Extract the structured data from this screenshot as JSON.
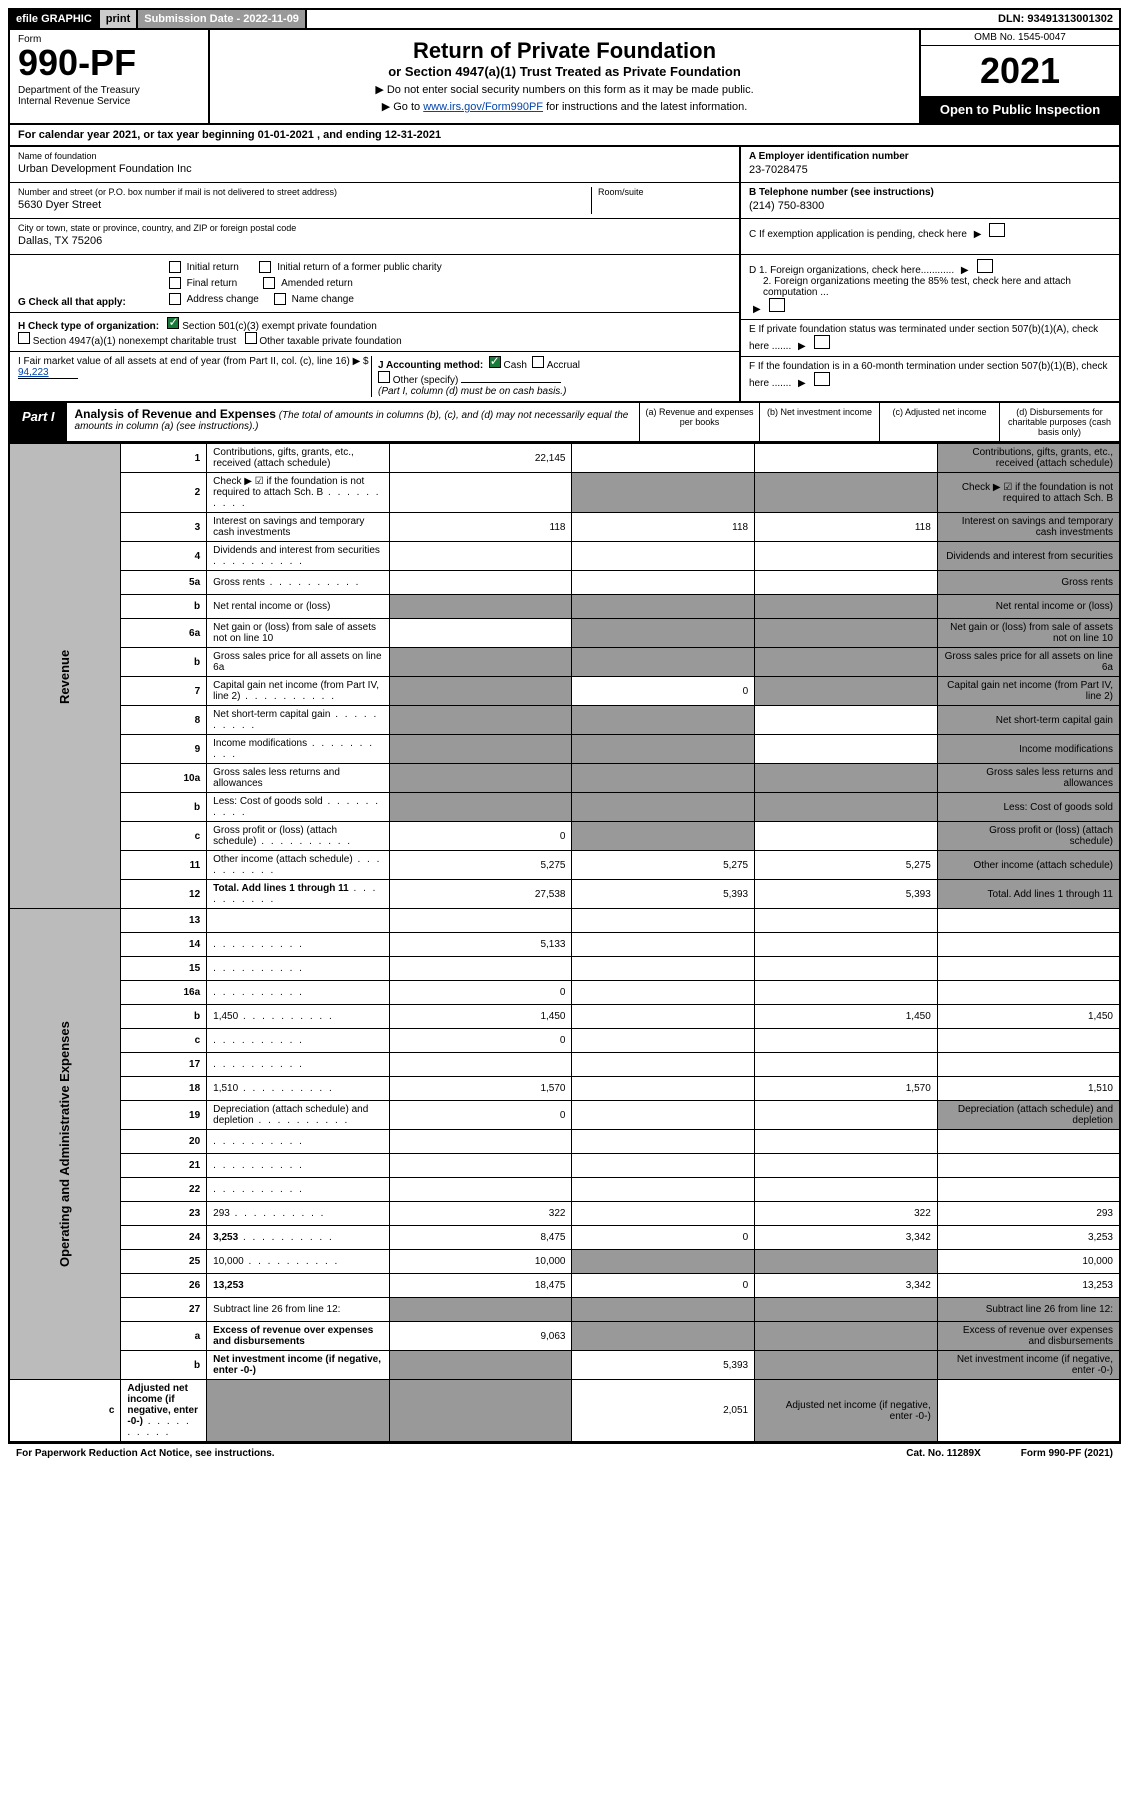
{
  "topbar": {
    "efile": "efile GRAPHIC",
    "print": "print",
    "subdate_label": "Submission Date - 2022-11-09",
    "dln": "DLN: 93491313001302"
  },
  "header": {
    "form_label": "Form",
    "form_num": "990-PF",
    "dept": "Department of the Treasury\nInternal Revenue Service",
    "title": "Return of Private Foundation",
    "subtitle": "or Section 4947(a)(1) Trust Treated as Private Foundation",
    "note1": "▶ Do not enter social security numbers on this form as it may be made public.",
    "note2_pre": "▶ Go to ",
    "note2_link": "www.irs.gov/Form990PF",
    "note2_post": " for instructions and the latest information.",
    "omb": "OMB No. 1545-0047",
    "year": "2021",
    "open": "Open to Public Inspection"
  },
  "calyear": "For calendar year 2021, or tax year beginning 01-01-2021          , and ending 12-31-2021",
  "info": {
    "name_label": "Name of foundation",
    "name": "Urban Development Foundation Inc",
    "addr_label": "Number and street (or P.O. box number if mail is not delivered to street address)",
    "room_label": "Room/suite",
    "addr": "5630 Dyer Street",
    "city_label": "City or town, state or province, country, and ZIP or foreign postal code",
    "city": "Dallas, TX  75206",
    "a_label": "A Employer identification number",
    "a_val": "23-7028475",
    "b_label": "B Telephone number (see instructions)",
    "b_val": "(214) 750-8300",
    "c_label": "C If exemption application is pending, check here",
    "d1_label": "D 1. Foreign organizations, check here............",
    "d2_label": "2. Foreign organizations meeting the 85% test, check here and attach computation ...",
    "e_label": "E If private foundation status was terminated under section 507(b)(1)(A), check here .......",
    "f_label": "F If the foundation is in a 60-month termination under section 507(b)(1)(B), check here .......",
    "g_label": "G Check all that apply:",
    "g_opts": [
      "Initial return",
      "Initial return of a former public charity",
      "Final return",
      "Amended return",
      "Address change",
      "Name change"
    ],
    "h_label": "H Check type of organization:",
    "h_opts": [
      "Section 501(c)(3) exempt private foundation",
      "Section 4947(a)(1) nonexempt charitable trust",
      "Other taxable private foundation"
    ],
    "i_label": "I Fair market value of all assets at end of year (from Part II, col. (c), line 16) ▶ $",
    "i_val": "94,223",
    "j_label": "J Accounting method:",
    "j_opts": [
      "Cash",
      "Accrual",
      "Other (specify)"
    ],
    "j_note": "(Part I, column (d) must be on cash basis.)"
  },
  "part1": {
    "label": "Part I",
    "title": "Analysis of Revenue and Expenses",
    "desc": "(The total of amounts in columns (b), (c), and (d) may not necessarily equal the amounts in column (a) (see instructions).)",
    "cols": [
      "(a) Revenue and expenses per books",
      "(b) Net investment income",
      "(c) Adjusted net income",
      "(d) Disbursements for charitable purposes (cash basis only)"
    ]
  },
  "sides": {
    "rev": "Revenue",
    "exp": "Operating and Administrative Expenses"
  },
  "rows": [
    {
      "n": "1",
      "d": "Contributions, gifts, grants, etc., received (attach schedule)",
      "a": "22,145",
      "b": "",
      "c": "",
      "d_grey": true
    },
    {
      "n": "2",
      "d": "Check ▶ ☑ if the foundation is not required to attach Sch. B",
      "dots": true,
      "a": "",
      "b_grey": true,
      "c_grey": true,
      "d_grey": true
    },
    {
      "n": "3",
      "d": "Interest on savings and temporary cash investments",
      "a": "118",
      "b": "118",
      "c": "118",
      "d_grey": true
    },
    {
      "n": "4",
      "d": "Dividends and interest from securities",
      "dots": true,
      "a": "",
      "b": "",
      "c": "",
      "d_grey": true
    },
    {
      "n": "5a",
      "d": "Gross rents",
      "dots": true,
      "a": "",
      "b": "",
      "c": "",
      "d_grey": true
    },
    {
      "n": "b",
      "d": "Net rental income or (loss)",
      "a_grey": true,
      "b_grey": true,
      "c_grey": true,
      "d_grey": true
    },
    {
      "n": "6a",
      "d": "Net gain or (loss) from sale of assets not on line 10",
      "a": "",
      "b_grey": true,
      "c_grey": true,
      "d_grey": true
    },
    {
      "n": "b",
      "d": "Gross sales price for all assets on line 6a",
      "a_grey": true,
      "b_grey": true,
      "c_grey": true,
      "d_grey": true
    },
    {
      "n": "7",
      "d": "Capital gain net income (from Part IV, line 2)",
      "dots": true,
      "a_grey": true,
      "b": "0",
      "c_grey": true,
      "d_grey": true
    },
    {
      "n": "8",
      "d": "Net short-term capital gain",
      "dots": true,
      "a_grey": true,
      "b_grey": true,
      "c": "",
      "d_grey": true
    },
    {
      "n": "9",
      "d": "Income modifications",
      "dots": true,
      "a_grey": true,
      "b_grey": true,
      "c": "",
      "d_grey": true
    },
    {
      "n": "10a",
      "d": "Gross sales less returns and allowances",
      "a_grey": true,
      "b_grey": true,
      "c_grey": true,
      "d_grey": true
    },
    {
      "n": "b",
      "d": "Less: Cost of goods sold",
      "dots": true,
      "a_grey": true,
      "b_grey": true,
      "c_grey": true,
      "d_grey": true
    },
    {
      "n": "c",
      "d": "Gross profit or (loss) (attach schedule)",
      "dots": true,
      "a": "0",
      "b_grey": true,
      "c": "",
      "d_grey": true
    },
    {
      "n": "11",
      "d": "Other income (attach schedule)",
      "dots": true,
      "a": "5,275",
      "b": "5,275",
      "c": "5,275",
      "d_grey": true
    },
    {
      "n": "12",
      "d": "Total. Add lines 1 through 11",
      "dots": true,
      "bold": true,
      "a": "27,538",
      "b": "5,393",
      "c": "5,393",
      "d_grey": true
    },
    {
      "n": "13",
      "d": "",
      "a": "",
      "b": "",
      "c": ""
    },
    {
      "n": "14",
      "d": "",
      "dots": true,
      "a": "5,133",
      "b": "",
      "c": ""
    },
    {
      "n": "15",
      "d": "",
      "dots": true,
      "a": "",
      "b": "",
      "c": ""
    },
    {
      "n": "16a",
      "d": "",
      "dots": true,
      "a": "0",
      "b": "",
      "c": ""
    },
    {
      "n": "b",
      "d": "1,450",
      "dots": true,
      "a": "1,450",
      "b": "",
      "c": "1,450"
    },
    {
      "n": "c",
      "d": "",
      "dots": true,
      "a": "0",
      "b": "",
      "c": ""
    },
    {
      "n": "17",
      "d": "",
      "dots": true,
      "a": "",
      "b": "",
      "c": ""
    },
    {
      "n": "18",
      "d": "1,510",
      "dots": true,
      "a": "1,570",
      "b": "",
      "c": "1,570"
    },
    {
      "n": "19",
      "d": "Depreciation (attach schedule) and depletion",
      "dots": true,
      "a": "0",
      "b": "",
      "c": "",
      "d_grey": true
    },
    {
      "n": "20",
      "d": "",
      "dots": true,
      "a": "",
      "b": "",
      "c": ""
    },
    {
      "n": "21",
      "d": "",
      "dots": true,
      "a": "",
      "b": "",
      "c": ""
    },
    {
      "n": "22",
      "d": "",
      "dots": true,
      "a": "",
      "b": "",
      "c": ""
    },
    {
      "n": "23",
      "d": "293",
      "dots": true,
      "a": "322",
      "b": "",
      "c": "322"
    },
    {
      "n": "24",
      "d": "3,253",
      "dots": true,
      "bold": true,
      "a": "8,475",
      "b": "0",
      "c": "3,342"
    },
    {
      "n": "25",
      "d": "10,000",
      "dots": true,
      "a": "10,000",
      "b_grey": true,
      "c_grey": true
    },
    {
      "n": "26",
      "d": "13,253",
      "bold": true,
      "a": "18,475",
      "b": "0",
      "c": "3,342"
    },
    {
      "n": "27",
      "d": "Subtract line 26 from line 12:",
      "a_grey": true,
      "b_grey": true,
      "c_grey": true,
      "d_grey": true
    },
    {
      "n": "a",
      "d": "Excess of revenue over expenses and disbursements",
      "bold": true,
      "a": "9,063",
      "b_grey": true,
      "c_grey": true,
      "d_grey": true
    },
    {
      "n": "b",
      "d": "Net investment income (if negative, enter -0-)",
      "bold": true,
      "a_grey": true,
      "b": "5,393",
      "c_grey": true,
      "d_grey": true
    },
    {
      "n": "c",
      "d": "Adjusted net income (if negative, enter -0-)",
      "dots": true,
      "bold": true,
      "a_grey": true,
      "b_grey": true,
      "c": "2,051",
      "d_grey": true
    }
  ],
  "footer": {
    "left": "For Paperwork Reduction Act Notice, see instructions.",
    "mid": "Cat. No. 11289X",
    "right": "Form 990-PF (2021)"
  }
}
